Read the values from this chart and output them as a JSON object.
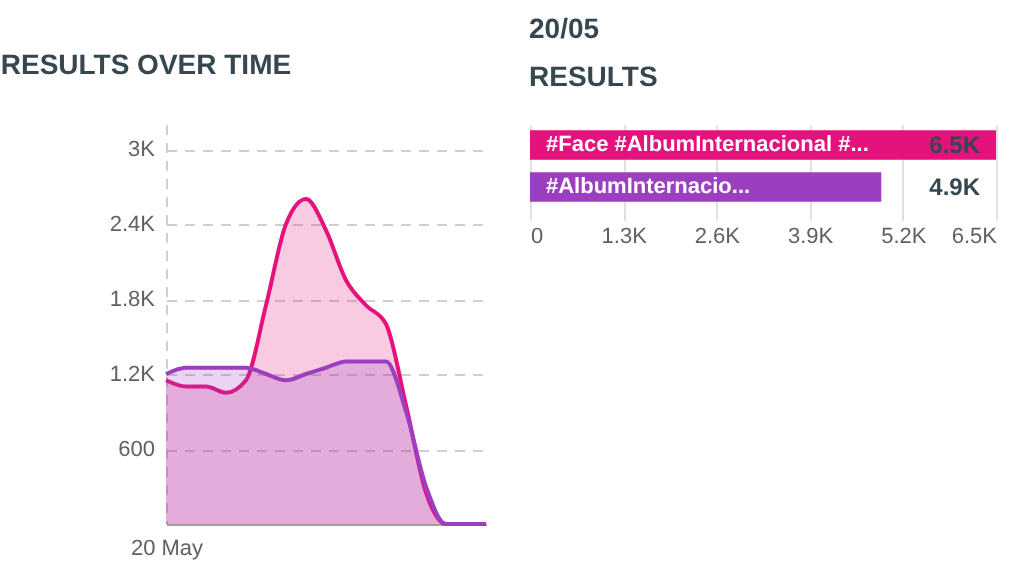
{
  "chart_data": [
    {
      "type": "area",
      "title": "RESULTS OVER TIME",
      "categories": [
        "20 May",
        null,
        null,
        null,
        null,
        null,
        null,
        null,
        null,
        null,
        null,
        null,
        null,
        null,
        null,
        null,
        null
      ],
      "ylim": [
        0,
        3200
      ],
      "yticks": [
        600,
        {
          "value": 1200,
          "label": "1.2K"
        },
        {
          "value": 1800,
          "label": "1.8K"
        },
        {
          "value": 2400,
          "label": "2.4K"
        },
        {
          "value": 3000,
          "label": "3K"
        }
      ],
      "grid": true,
      "series": [
        {
          "color": "#e5127d",
          "values": [
            1150,
            1100,
            1100,
            1050,
            1150,
            1750,
            2400,
            2600,
            2350,
            1950,
            1750,
            1600,
            950,
            250,
            0,
            0,
            0
          ]
        },
        {
          "color": "#9b3fc0",
          "values": [
            1200,
            1250,
            1250,
            1250,
            1250,
            1200,
            1150,
            1200,
            1250,
            1300,
            1300,
            1300,
            900,
            300,
            0,
            0,
            0
          ]
        }
      ]
    },
    {
      "type": "bar",
      "orientation": "horizontal",
      "title": "20/05",
      "subtitle": "RESULTS",
      "categories": [
        "#Face #AlbumInternacional #...",
        "#AlbumInternacio..."
      ],
      "values": [
        6500,
        4900
      ],
      "colors": [
        "#e5127d",
        "#9b3fc0"
      ],
      "value_labels": [
        "6.5K",
        "4.9K"
      ],
      "xlim": [
        0,
        6500
      ],
      "xticks": [
        0,
        {
          "value": 1300,
          "label": "1.3K"
        },
        {
          "value": 2600,
          "label": "2.6K"
        },
        {
          "value": 3900,
          "label": "3.9K"
        },
        {
          "value": 5200,
          "label": "5.2K"
        },
        {
          "value": 6500,
          "label": "6.5K"
        }
      ],
      "grid": "x"
    }
  ]
}
